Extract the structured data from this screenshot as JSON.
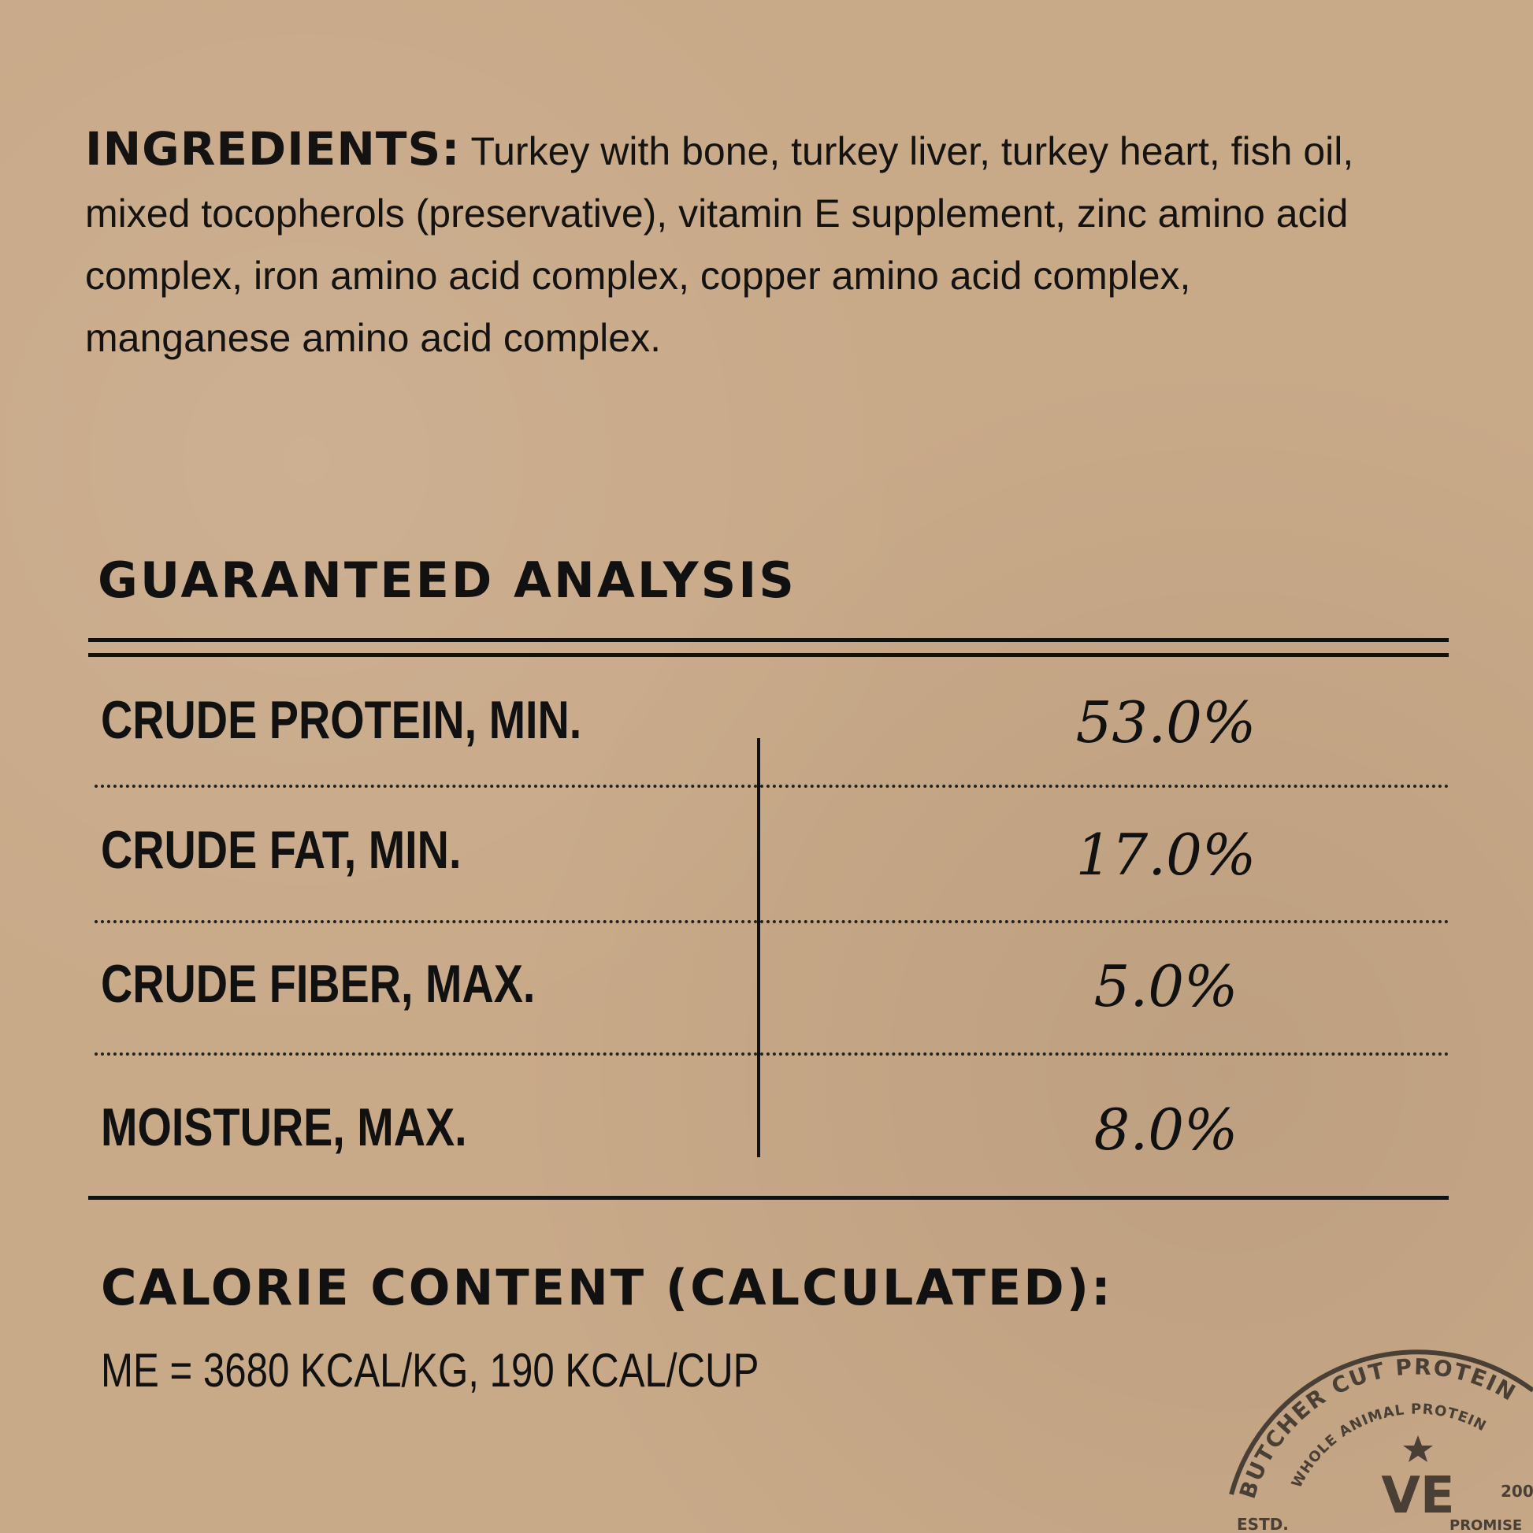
{
  "ingredients": {
    "label": "INGREDIENTS:",
    "text": "Turkey with bone, turkey liver, turkey heart, fish oil, mixed tocopherols (preservative), vitamin E supplement, zinc amino acid complex, iron amino acid complex, copper amino acid complex, manganese amino acid complex."
  },
  "analysis": {
    "title": "GUARANTEED ANALYSIS",
    "rows": [
      {
        "label": "CRUDE PROTEIN, MIN.",
        "value": "53.0%"
      },
      {
        "label": "CRUDE FAT, MIN.",
        "value": "17.0%"
      },
      {
        "label": "CRUDE FIBER, MAX.",
        "value": "5.0%"
      },
      {
        "label": "MOISTURE, MAX.",
        "value": "8.0%"
      }
    ]
  },
  "calorie": {
    "title": "CALORIE CONTENT (CALCULATED):",
    "text": "ME = 3680 KCAL/KG, 190 KCAL/CUP"
  },
  "stamp": {
    "outer": "BUTCHER CUT PROTEIN",
    "inner": "WHOLE ANIMAL PROTEIN",
    "logo": "VE",
    "estd": "ESTD.",
    "year": "200",
    "promise": "PROMISE",
    "color": "#4a3f35"
  }
}
